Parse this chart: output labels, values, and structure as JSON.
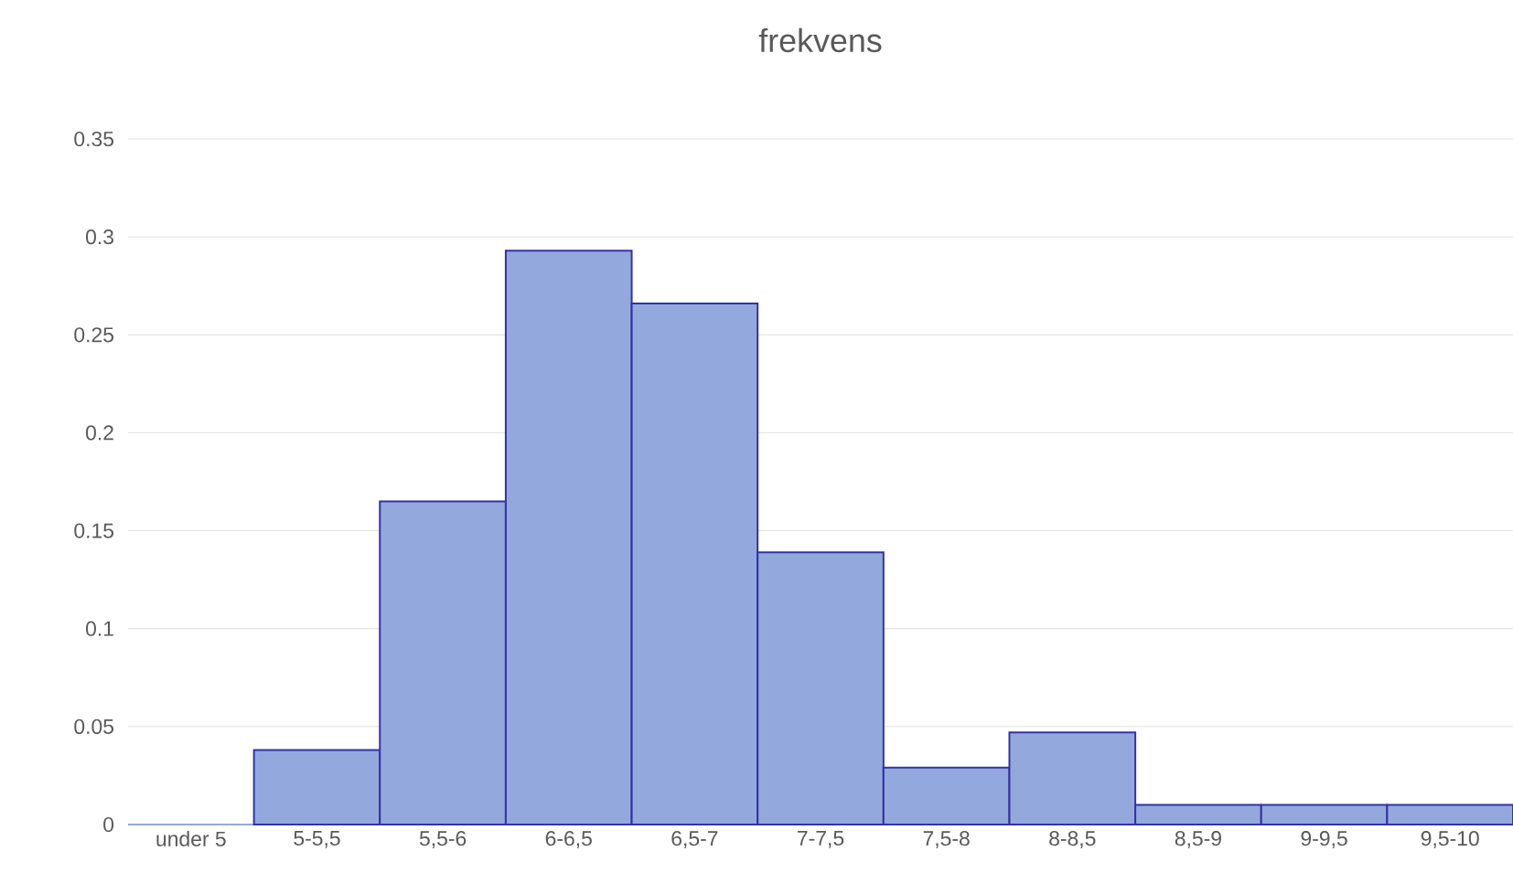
{
  "chart_data": {
    "type": "bar",
    "title": "frekvens",
    "categories": [
      "under 5",
      "5-5,5",
      "5,5-6",
      "6-6,5",
      "6,5-7",
      "7-7,5",
      "7,5-8",
      "8-8,5",
      "8,5-9",
      "9-9,5",
      "9,5-10"
    ],
    "values": [
      0,
      0.038,
      0.165,
      0.293,
      0.266,
      0.139,
      0.029,
      0.047,
      0.01,
      0.01,
      0.01
    ],
    "color": "#93a9dd",
    "ylim": [
      0,
      0.35
    ],
    "yticks": [
      0,
      0.05,
      0.1,
      0.15,
      0.2,
      0.25,
      0.3,
      0.35
    ],
    "grid": "y"
  }
}
